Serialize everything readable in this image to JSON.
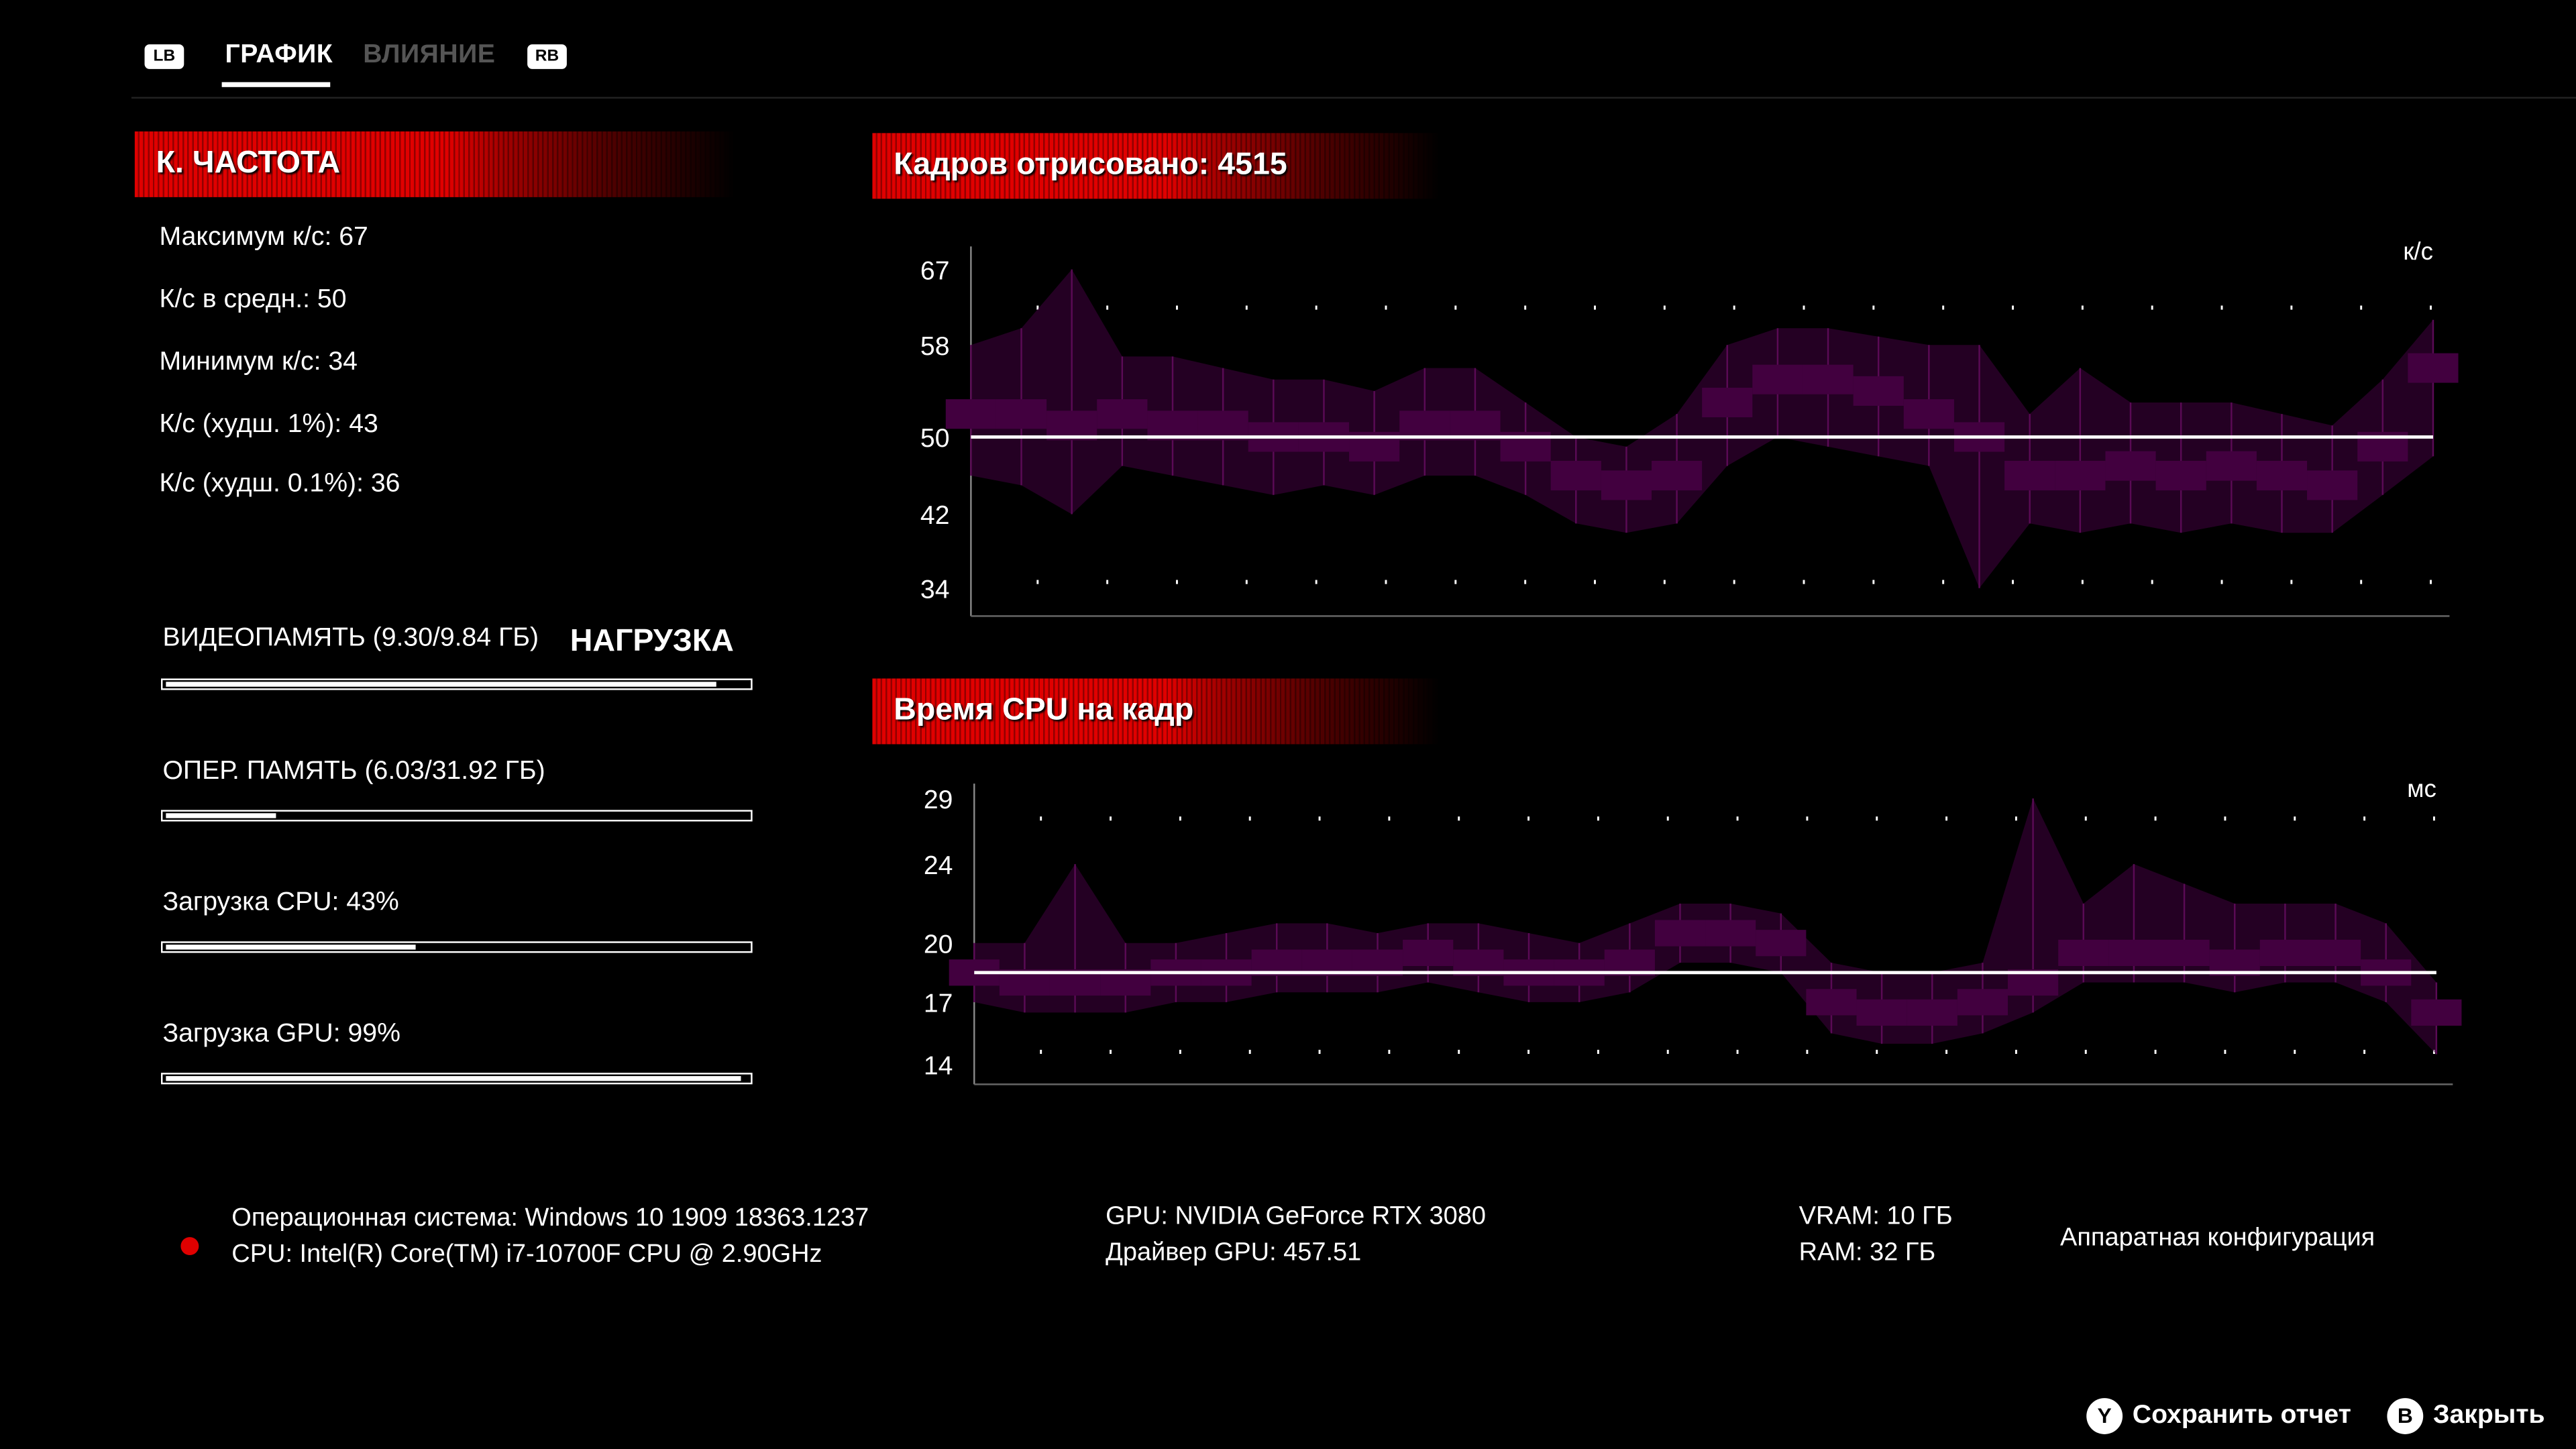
{
  "tabs": {
    "lb": "LB",
    "rb": "RB",
    "items": [
      {
        "label": "ГРАФИК",
        "active": true
      },
      {
        "label": "ВЛИЯНИЕ",
        "active": false
      }
    ]
  },
  "fps_panel": {
    "title": "К. ЧАСТОТА",
    "stats": [
      "Максимум к/с: 67",
      "К/с в средн.: 50",
      "Минимум к/с: 34",
      "К/с (худш. 1%): 43",
      "К/с (худш. 0.1%): 36"
    ]
  },
  "load": {
    "title": "НАГРУЗКА",
    "bars": [
      {
        "label": "ВИДЕОПАМЯТЬ (9.30/9.84 ГБ)",
        "percent": 94.5
      },
      {
        "label": "ОПЕР. ПАМЯТЬ (6.03/31.92 ГБ)",
        "percent": 18.9
      },
      {
        "label": "Загрузка CPU: 43%",
        "percent": 43
      },
      {
        "label": "Загрузка GPU: 99%",
        "percent": 99
      }
    ]
  },
  "system": {
    "os": "Операционная система: Windows 10 1909 18363.1237",
    "cpu": "CPU: Intel(R) Core(TM) i7-10700F CPU @ 2.90GHz",
    "gpu": "GPU: NVIDIA GeForce RTX 3080",
    "driver": "Драйвер GPU: 457.51",
    "vram": "VRAM: 10 ГБ",
    "ram": "RAM: 32 ГБ",
    "hw_config": "Аппаратная конфигурация",
    "status_color": "#e00000"
  },
  "footer": {
    "save": {
      "key": "Y",
      "label": "Сохранить отчет"
    },
    "close": {
      "key": "B",
      "label": "Закрыть"
    }
  },
  "colors": {
    "accent": "#e00000",
    "series": "#42003f",
    "average_line": "#ffffff"
  },
  "chart_data": [
    {
      "type": "area",
      "title": "Кадров отрисовано: 4515",
      "unit": "к/с",
      "yticks": [
        67,
        58,
        50,
        42,
        34
      ],
      "average": 50,
      "grid": "dotted",
      "mean": [
        52,
        52,
        51,
        52,
        51,
        51,
        50,
        50,
        49,
        51,
        51,
        49,
        46,
        45,
        46,
        53,
        55,
        55,
        54,
        52,
        50,
        46,
        46,
        47,
        46,
        47,
        46,
        45,
        49,
        56
      ],
      "min": [
        46,
        45,
        42,
        47,
        46,
        45,
        44,
        45,
        44,
        46,
        46,
        44,
        41,
        40,
        41,
        47,
        50,
        49,
        48,
        47,
        34,
        41,
        40,
        41,
        40,
        41,
        40,
        40,
        44,
        48
      ],
      "max": [
        58,
        60,
        67,
        57,
        57,
        56,
        55,
        55,
        54,
        56,
        56,
        53,
        50,
        49,
        52,
        58,
        60,
        60,
        59,
        58,
        58,
        52,
        56,
        53,
        53,
        53,
        52,
        51,
        55,
        61
      ]
    },
    {
      "type": "area",
      "title": "Время CPU на кадр",
      "unit": "мс",
      "yticks": [
        29,
        24,
        20,
        17,
        14
      ],
      "average": 18.5,
      "grid": "dotted",
      "mean": [
        18.5,
        18,
        18,
        18,
        18.5,
        18.5,
        19,
        19,
        19,
        19.5,
        19,
        18.5,
        18.5,
        19,
        20.5,
        20.5,
        20,
        17,
        16.5,
        16.5,
        17,
        18,
        19.5,
        19.5,
        19.5,
        19,
        19.5,
        19.5,
        18.5,
        16.5
      ],
      "min": [
        17,
        16.5,
        16.5,
        16.5,
        17,
        17,
        17.5,
        17.5,
        17.5,
        18,
        17.5,
        17,
        17,
        17.5,
        19,
        19,
        18.5,
        15.5,
        15,
        15,
        15.5,
        16.5,
        18,
        18,
        18,
        17.5,
        18,
        18,
        17,
        14.5
      ],
      "max": [
        20,
        20,
        24,
        20,
        20,
        20.5,
        21,
        21,
        20.5,
        21,
        21,
        20.5,
        20,
        21,
        22,
        22,
        21.5,
        19,
        18.5,
        18.5,
        19,
        29,
        22,
        24,
        23,
        22,
        22,
        22,
        21,
        18
      ]
    }
  ]
}
